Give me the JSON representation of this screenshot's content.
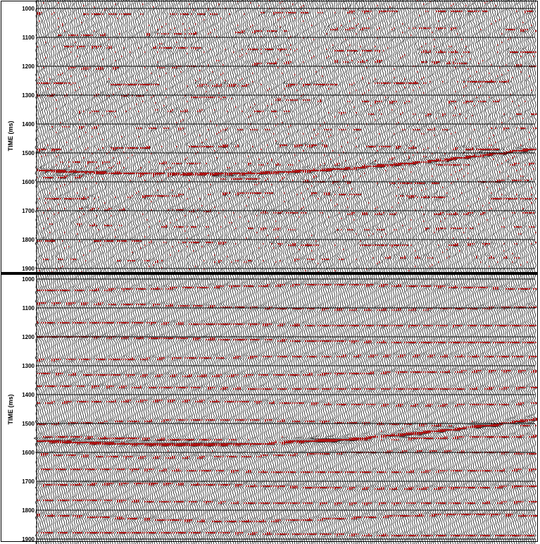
{
  "figure": {
    "panels": [
      {
        "id": "top",
        "axis_label": "TIME (ms)",
        "ticks": [
          "1000",
          "1100",
          "1200",
          "1300",
          "1400",
          "1500",
          "1600",
          "1700",
          "1800",
          "1900"
        ],
        "horizon_style": "noisy"
      },
      {
        "id": "bottom",
        "axis_label": "TIME (ms)",
        "ticks": [
          "1000",
          "1100",
          "1200",
          "1300",
          "1400",
          "1500",
          "1600",
          "1700",
          "1800",
          "1900"
        ],
        "horizon_style": "continuous"
      }
    ],
    "colors": {
      "wiggle": "#000000",
      "positive_fill": "#b01010",
      "negative_fill": "#7a7a7a",
      "background": "#ffffff",
      "gridline": "#000000"
    }
  }
}
